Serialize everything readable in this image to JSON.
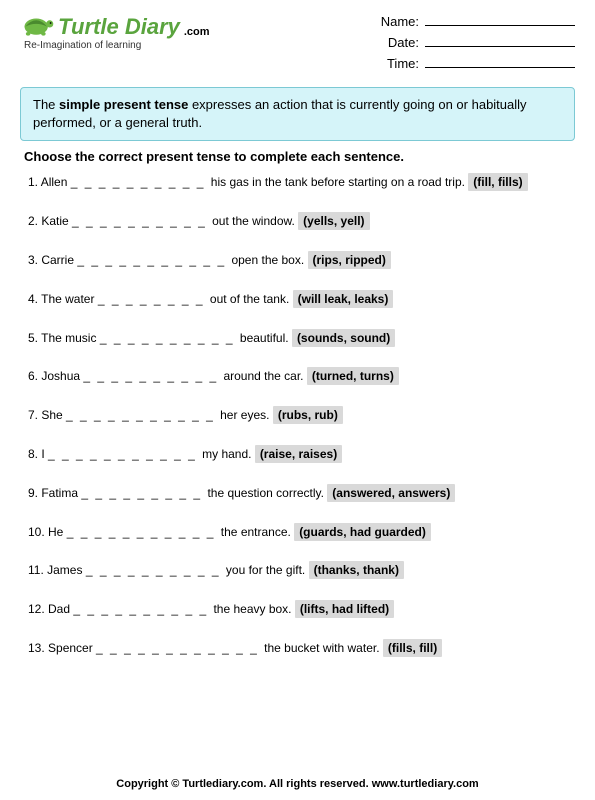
{
  "logo": {
    "wordmark": "Turtle Diary",
    "dotcom": ".com",
    "tagline": "Re-Imagination of learning",
    "colors": {
      "brand_green": "#5aa43e",
      "turtle_body": "#6fb845",
      "turtle_shell": "#4a8a2e"
    }
  },
  "meta": {
    "name_label": "Name:",
    "date_label": "Date:",
    "time_label": "Time:"
  },
  "definition": {
    "pre": "The ",
    "bold": "simple present tense",
    "post": " expresses an action that is currently going on or habitually performed, or a general truth."
  },
  "instructions": "Choose the correct present tense to complete each sentence.",
  "questions": [
    {
      "n": "1.",
      "pre": "Allen ",
      "blank": "_ _ _ _ _ _ _ _ _ _ ",
      "post": "his gas in the tank before starting on a road trip. ",
      "choices": "(fill, fills)"
    },
    {
      "n": "2.",
      "pre": "Katie ",
      "blank": "_ _ _ _ _ _ _ _ _ _ ",
      "post": "out the window. ",
      "choices": "(yells, yell)"
    },
    {
      "n": "3.",
      "pre": "Carrie ",
      "blank": "_ _ _ _ _ _ _ _ _ _ _ ",
      "post": "open the box. ",
      "choices": "(rips, ripped)"
    },
    {
      "n": "4.",
      "pre": "The water ",
      "blank": "_ _ _ _ _ _ _ _ ",
      "post": "out of the tank. ",
      "choices": "(will leak, leaks)"
    },
    {
      "n": "5.",
      "pre": "The music ",
      "blank": "_ _ _ _ _ _ _ _ _ _ ",
      "post": "beautiful. ",
      "choices": "(sounds, sound)"
    },
    {
      "n": "6.",
      "pre": "Joshua ",
      "blank": "_ _ _ _ _ _ _ _ _ _ ",
      "post": "around the car. ",
      "choices": "(turned, turns)"
    },
    {
      "n": "7.",
      "pre": "She ",
      "blank": "_ _ _ _ _ _ _ _ _ _ _ ",
      "post": "her eyes. ",
      "choices": "(rubs, rub)"
    },
    {
      "n": "8.",
      "pre": "I ",
      "blank": "_ _ _ _ _ _ _ _ _ _ _ ",
      "post": "my hand. ",
      "choices": "(raise, raises)"
    },
    {
      "n": "9.",
      "pre": "Fatima ",
      "blank": "_ _ _ _ _ _ _ _ _ ",
      "post": "the question correctly. ",
      "choices": "(answered, answers)"
    },
    {
      "n": "10.",
      "pre": "He ",
      "blank": "_ _ _ _ _ _ _ _ _ _ _ ",
      "post": "the entrance. ",
      "choices": "(guards, had guarded)"
    },
    {
      "n": "11.",
      "pre": "James ",
      "blank": "_ _ _ _ _ _ _ _ _ _ ",
      "post": "you for the gift. ",
      "choices": "(thanks, thank)"
    },
    {
      "n": "12.",
      "pre": "Dad ",
      "blank": "_ _ _ _ _ _ _ _ _ _ ",
      "post": "the heavy box. ",
      "choices": "(lifts, had lifted)"
    },
    {
      "n": "13.",
      "pre": "Spencer ",
      "blank": "_ _ _ _ _ _ _ _ _ _ _ _ ",
      "post": "the bucket with water. ",
      "choices": "(fills, fill)"
    }
  ],
  "footer": "Copyright © Turtlediary.com. All rights reserved. www.turtlediary.com"
}
